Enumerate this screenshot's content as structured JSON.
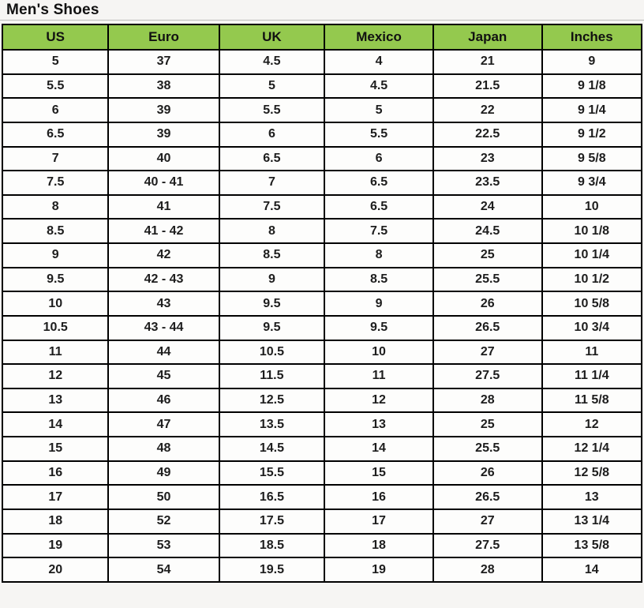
{
  "page": {
    "title": "Men's Shoes"
  },
  "style": {
    "page_bg": "#f6f5f3",
    "header_bg": "#94c94e",
    "header_text": "#111111",
    "border_color": "#000000",
    "cell_bg": "#fdfdfc",
    "cell_text": "#1d1d1d"
  },
  "chart_data": {
    "type": "table",
    "title": "Men's Shoes",
    "columns": [
      "US",
      "Euro",
      "UK",
      "Mexico",
      "Japan",
      "Inches"
    ],
    "rows": [
      [
        "5",
        "37",
        "4.5",
        "4",
        "21",
        "9"
      ],
      [
        "5.5",
        "38",
        "5",
        "4.5",
        "21.5",
        "9 1/8"
      ],
      [
        "6",
        "39",
        "5.5",
        "5",
        "22",
        "9 1/4"
      ],
      [
        "6.5",
        "39",
        "6",
        "5.5",
        "22.5",
        "9 1/2"
      ],
      [
        "7",
        "40",
        "6.5",
        "6",
        "23",
        "9 5/8"
      ],
      [
        "7.5",
        "40 - 41",
        "7",
        "6.5",
        "23.5",
        "9 3/4"
      ],
      [
        "8",
        "41",
        "7.5",
        "6.5",
        "24",
        "10"
      ],
      [
        "8.5",
        "41 - 42",
        "8",
        "7.5",
        "24.5",
        "10 1/8"
      ],
      [
        "9",
        "42",
        "8.5",
        "8",
        "25",
        "10 1/4"
      ],
      [
        "9.5",
        "42 - 43",
        "9",
        "8.5",
        "25.5",
        "10 1/2"
      ],
      [
        "10",
        "43",
        "9.5",
        "9",
        "26",
        "10 5/8"
      ],
      [
        "10.5",
        "43 - 44",
        "9.5",
        "9.5",
        "26.5",
        "10 3/4"
      ],
      [
        "11",
        "44",
        "10.5",
        "10",
        "27",
        "11"
      ],
      [
        "12",
        "45",
        "11.5",
        "11",
        "27.5",
        "11 1/4"
      ],
      [
        "13",
        "46",
        "12.5",
        "12",
        "28",
        "11 5/8"
      ],
      [
        "14",
        "47",
        "13.5",
        "13",
        "25",
        "12"
      ],
      [
        "15",
        "48",
        "14.5",
        "14",
        "25.5",
        "12 1/4"
      ],
      [
        "16",
        "49",
        "15.5",
        "15",
        "26",
        "12 5/8"
      ],
      [
        "17",
        "50",
        "16.5",
        "16",
        "26.5",
        "13"
      ],
      [
        "18",
        "52",
        "17.5",
        "17",
        "27",
        "13 1/4"
      ],
      [
        "19",
        "53",
        "18.5",
        "18",
        "27.5",
        "13 5/8"
      ],
      [
        "20",
        "54",
        "19.5",
        "19",
        "28",
        "14"
      ]
    ]
  }
}
